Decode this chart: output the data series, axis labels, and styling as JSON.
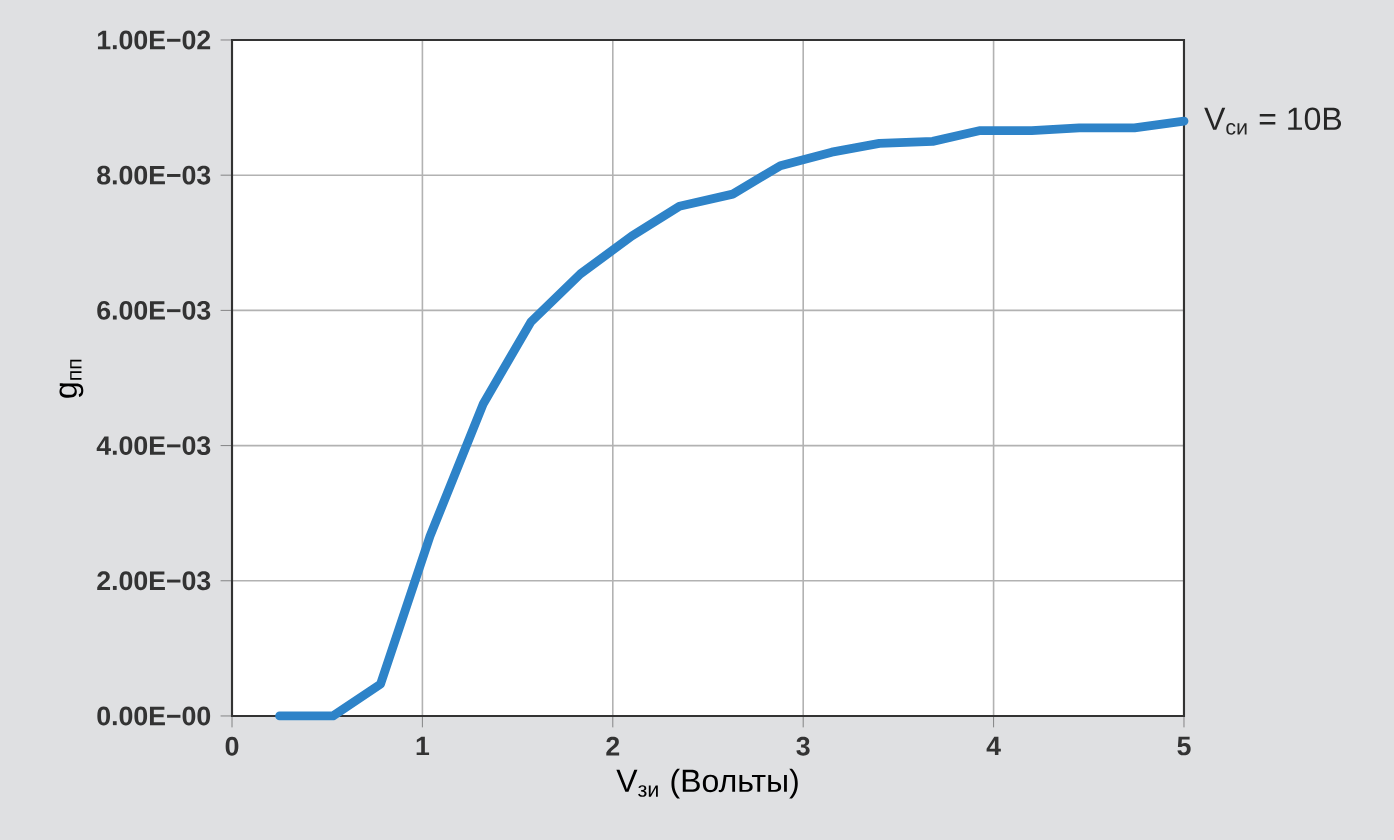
{
  "chart_data": {
    "type": "line",
    "xlabel": "V$_{зи}$ (Вольты)",
    "ylabel": "g$_{пп}$",
    "x": [
      0.25,
      0.53,
      0.78,
      1.04,
      1.32,
      1.57,
      1.83,
      2.1,
      2.35,
      2.63,
      2.88,
      3.15,
      3.4,
      3.68,
      3.93,
      4.2,
      4.45,
      4.74,
      5.0
    ],
    "series": [
      {
        "color": "#2e83c8",
        "values": [
          0,
          0,
          0.00047,
          0.00266,
          0.00462,
          0.00583,
          0.00654,
          0.0071,
          0.00754,
          0.00772,
          0.00814,
          0.00834,
          0.00847,
          0.0085,
          0.00866,
          0.00866,
          0.0087,
          0.0087,
          0.0088
        ]
      }
    ],
    "xlim": [
      0,
      5
    ],
    "ylim": [
      0,
      0.01
    ],
    "xticks": [
      0,
      1,
      2,
      3,
      4,
      5
    ],
    "yticks": [
      {
        "value": 0,
        "label": "0.00E−00"
      },
      {
        "value": 0.002,
        "label": "2.00E−03"
      },
      {
        "value": 0.004,
        "label": "4.00E−03"
      },
      {
        "value": 0.006,
        "label": "6.00E−03"
      },
      {
        "value": 0.008,
        "label": "8.00E−03"
      },
      {
        "value": 0.01,
        "label": "1.00E−02"
      }
    ],
    "annotations": [
      {
        "text": "V$_{си}$ = 10В",
        "x": 5,
        "y": 0.0088
      }
    ],
    "grid": true,
    "marker": "none",
    "line_style": "solid"
  }
}
